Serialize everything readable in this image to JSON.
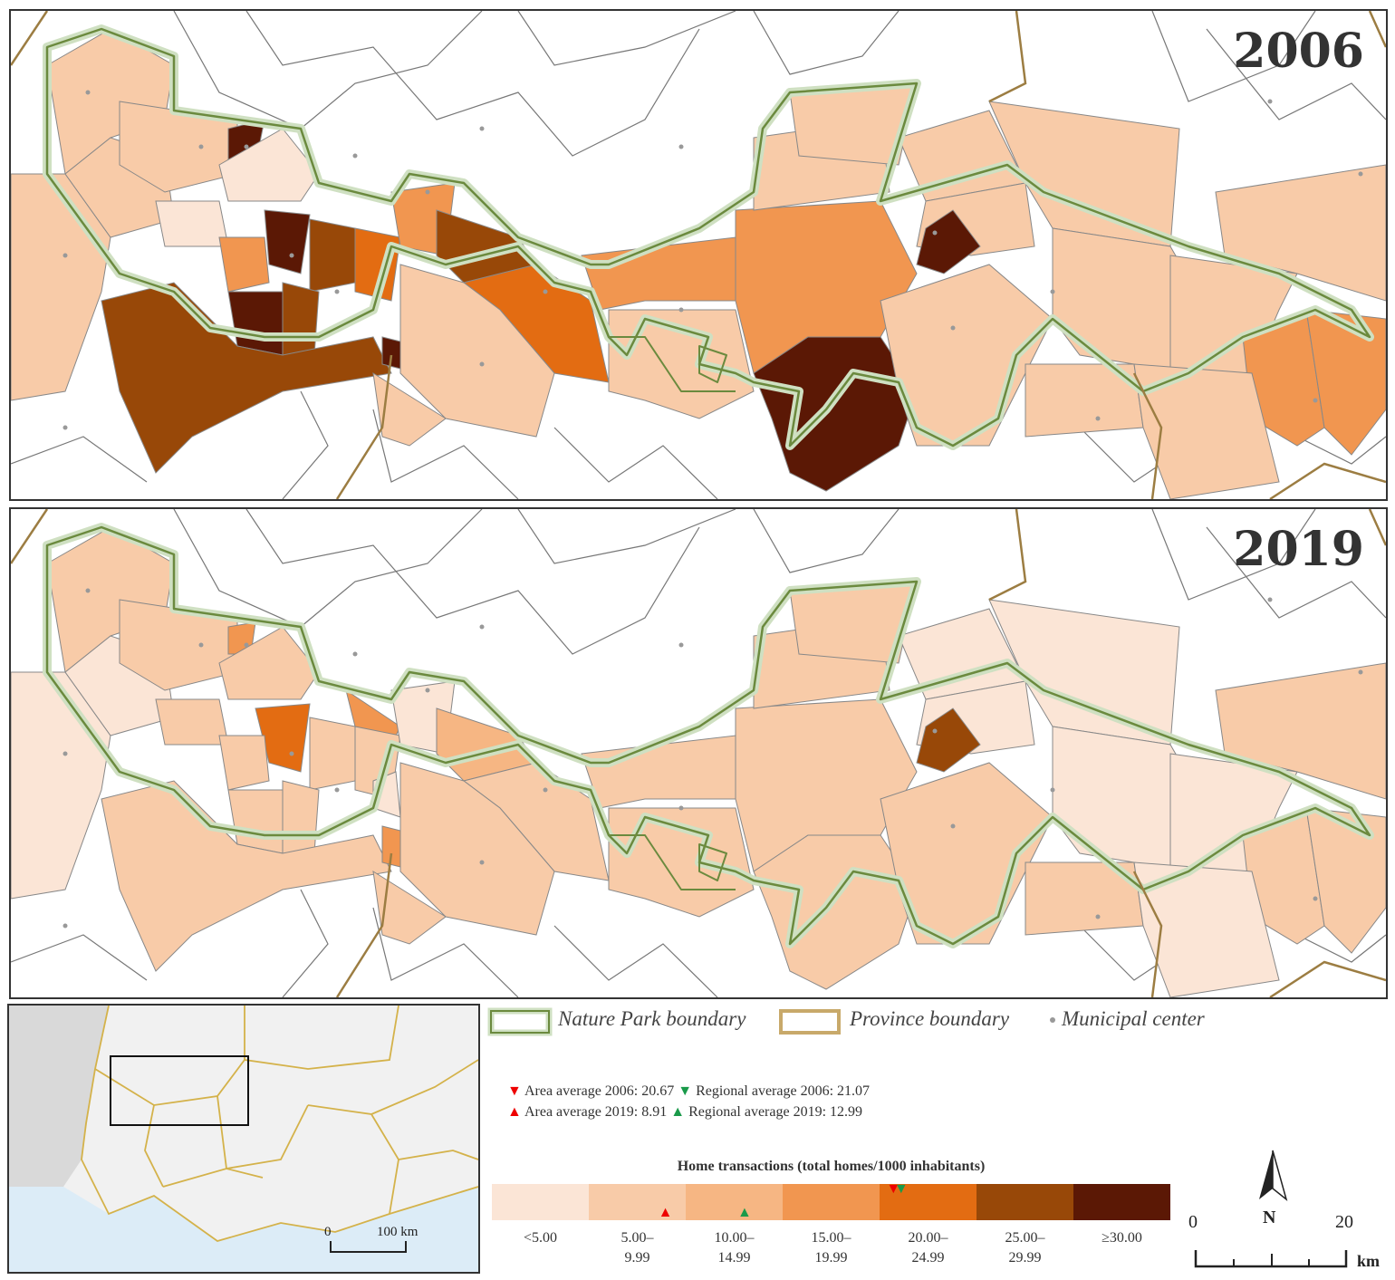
{
  "maps": {
    "panel_2006": {
      "year": "2006"
    },
    "panel_2019": {
      "year": "2019"
    }
  },
  "inset": {
    "scale_zero": "0",
    "scale_label": "100 km"
  },
  "legend": {
    "nature_park": "Nature Park boundary",
    "province": "Province boundary",
    "municipal": "Municipal center"
  },
  "averages": {
    "area_2006": "Area average 2006: 20.67",
    "regional_2006": "Regional average 2006: 21.07",
    "area_2019": "Area average 2019: 8.91",
    "regional_2019": "Regional average 2019: 12.99"
  },
  "color_scale": {
    "title": "Home transactions (total homes/1000 inhabitants)",
    "bins": [
      {
        "label_1": "<5.00",
        "label_2": "",
        "color": "#fbe5d6"
      },
      {
        "label_1": "5.00–",
        "label_2": "9.99",
        "color": "#f8cba8"
      },
      {
        "label_1": "10.00–",
        "label_2": "14.99",
        "color": "#f6b683"
      },
      {
        "label_1": "15.00–",
        "label_2": "19.99",
        "color": "#f19650"
      },
      {
        "label_1": "20.00–",
        "label_2": "24.99",
        "color": "#e36c12"
      },
      {
        "label_1": "25.00–",
        "label_2": "29.99",
        "color": "#984808"
      },
      {
        "label_1": "≥30.00",
        "label_2": "",
        "color": "#5b1805"
      }
    ],
    "domain": [
      0,
      35
    ],
    "markers": [
      {
        "id": "area_2006",
        "value": 20.67,
        "color": "#e00",
        "shape": "down"
      },
      {
        "id": "regional_2006",
        "value": 21.07,
        "color": "#1a9a4a",
        "shape": "down"
      },
      {
        "id": "area_2019",
        "value": 8.91,
        "color": "#e00",
        "shape": "up"
      },
      {
        "id": "regional_2019",
        "value": 12.99,
        "color": "#1a9a4a",
        "shape": "up"
      }
    ]
  },
  "north": {
    "label": "N"
  },
  "scalebar": {
    "start": "0",
    "end": "20",
    "unit": "km"
  }
}
